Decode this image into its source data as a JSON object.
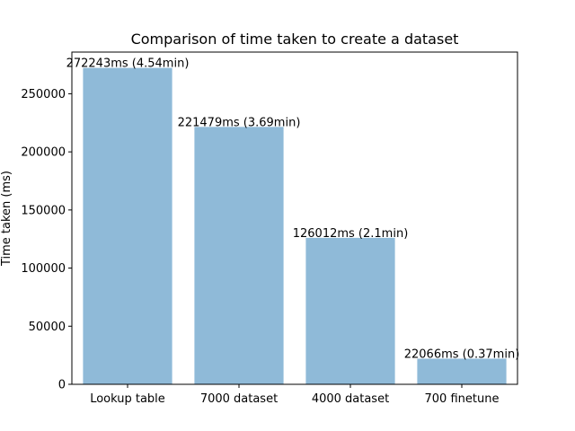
{
  "chart_data": {
    "type": "bar",
    "title": "Comparison of time taken to create a dataset",
    "xlabel": "",
    "ylabel": "Time taken (ms)",
    "categories": [
      "Lookup table",
      "7000 dataset",
      "4000 dataset",
      "700 finetune"
    ],
    "values": [
      272243,
      221479,
      126012,
      22066
    ],
    "data_labels": [
      "272243ms (4.54min)",
      "221479ms (3.69min)",
      "126012ms (2.1min)",
      "22066ms (0.37min)"
    ],
    "yticks": [
      0,
      50000,
      100000,
      150000,
      200000,
      250000
    ],
    "ytick_labels": [
      "0",
      "50000",
      "100000",
      "150000",
      "200000",
      "250000"
    ],
    "ylim": [
      0,
      285855
    ],
    "bar_color": "#8fbad8",
    "grid": false,
    "legend": "none"
  }
}
